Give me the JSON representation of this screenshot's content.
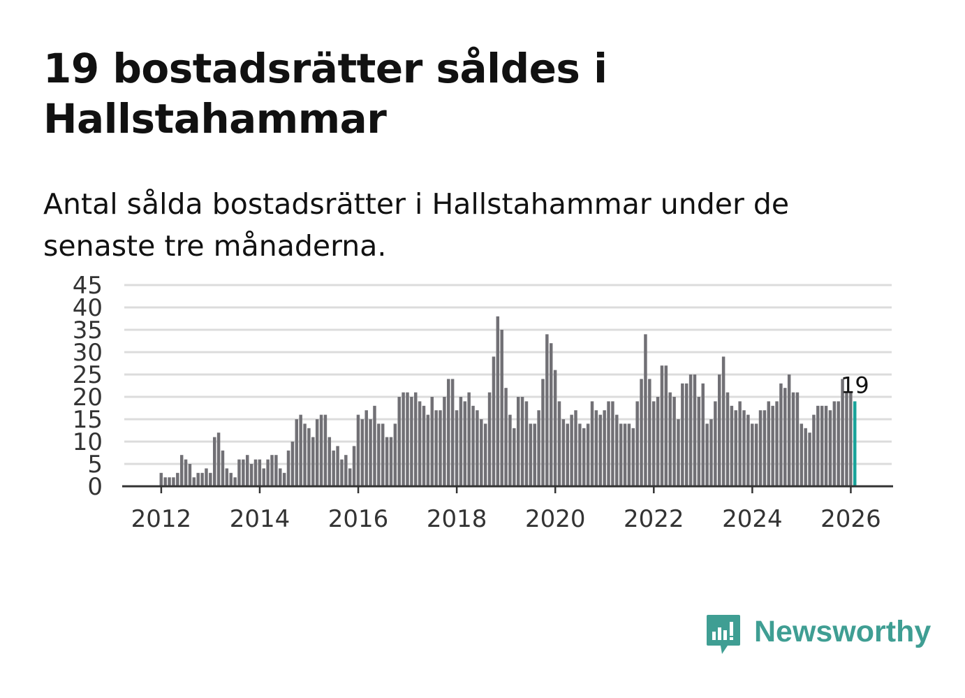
{
  "title": "19 bostadsrätter såldes i Hallstahammar",
  "subtitle": "Antal sålda bostadsrätter i Hallstahammar under de senaste tre månaderna.",
  "brand": {
    "name": "Newsworthy",
    "icon": "newsworthy-logo-icon",
    "color": "#3f9e93"
  },
  "colors": {
    "bar": "#717075",
    "highlight": "#1aa39a",
    "grid": "#dcdcdc",
    "axis": "#333333"
  },
  "chart_data": {
    "type": "bar",
    "title": "19 bostadsrätter såldes i Hallstahammar",
    "xlabel": "",
    "ylabel": "",
    "ylim": [
      0,
      45
    ],
    "yticks": [
      "0",
      "5",
      "10",
      "15",
      "20",
      "25",
      "30",
      "35",
      "40",
      "45"
    ],
    "xticks": [
      {
        "label": "2012",
        "value": 2012
      },
      {
        "label": "2014",
        "value": 2014
      },
      {
        "label": "2016",
        "value": 2016
      },
      {
        "label": "2018",
        "value": 2018
      },
      {
        "label": "2020",
        "value": 2020
      },
      {
        "label": "2022",
        "value": 2022
      },
      {
        "label": "2024",
        "value": 2024
      },
      {
        "label": "2026",
        "value": 2026
      }
    ],
    "x_start_year": 2011.25,
    "x_end_year": 2026.83,
    "series_start_year": 2012,
    "months_per_bar": 1,
    "values": [
      3,
      2,
      2,
      2,
      3,
      7,
      6,
      5,
      2,
      3,
      3,
      4,
      3,
      11,
      12,
      8,
      4,
      3,
      2,
      6,
      6,
      7,
      5,
      6,
      6,
      4,
      6,
      7,
      7,
      4,
      3,
      8,
      10,
      15,
      16,
      14,
      13,
      11,
      15,
      16,
      16,
      11,
      8,
      9,
      6,
      7,
      4,
      9,
      16,
      15,
      17,
      15,
      18,
      14,
      14,
      11,
      11,
      14,
      20,
      21,
      21,
      20,
      21,
      19,
      18,
      16,
      20,
      17,
      17,
      20,
      24,
      24,
      17,
      20,
      19,
      21,
      18,
      17,
      15,
      14,
      21,
      29,
      38,
      35,
      22,
      16,
      13,
      20,
      20,
      19,
      14,
      14,
      17,
      24,
      34,
      32,
      26,
      19,
      15,
      14,
      16,
      17,
      14,
      13,
      14,
      19,
      17,
      16,
      17,
      19,
      19,
      16,
      14,
      14,
      14,
      13,
      19,
      24,
      34,
      24,
      19,
      20,
      27,
      27,
      21,
      20,
      15,
      23,
      23,
      25,
      25,
      20,
      23,
      14,
      15,
      19,
      25,
      29,
      21,
      18,
      17,
      19,
      17,
      16,
      14,
      14,
      17,
      17,
      19,
      18,
      19,
      23,
      22,
      25,
      21,
      21,
      14,
      13,
      12,
      16,
      18,
      18,
      18,
      17,
      19,
      19,
      24,
      21,
      21,
      19
    ],
    "highlight_last_n": 1,
    "annotation": {
      "label": "19"
    }
  }
}
